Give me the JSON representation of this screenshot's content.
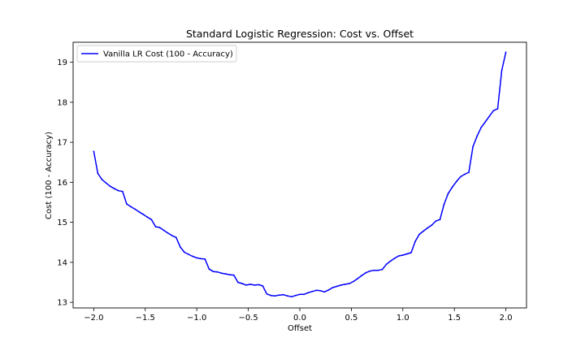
{
  "chart_data": {
    "type": "line",
    "title": "Standard Logistic Regression: Cost vs. Offset",
    "xlabel": "Offset",
    "ylabel": "Cost (100 - Accuracy)",
    "xlim": [
      -2.2,
      2.2
    ],
    "ylim": [
      12.86,
      19.5
    ],
    "xticks": [
      -2.0,
      -1.5,
      -1.0,
      -0.5,
      0.0,
      0.5,
      1.0,
      1.5,
      2.0
    ],
    "xtick_labels": [
      "−2.0",
      "−1.5",
      "−1.0",
      "−0.5",
      "0.0",
      "0.5",
      "1.0",
      "1.5",
      "2.0"
    ],
    "yticks": [
      13,
      14,
      15,
      16,
      17,
      18,
      19
    ],
    "ytick_labels": [
      "13",
      "14",
      "15",
      "16",
      "17",
      "18",
      "19"
    ],
    "grid": false,
    "legend": {
      "position": "top-left"
    },
    "series": [
      {
        "name": "Vanilla LR Cost (100 - Accuracy)",
        "color": "#0000ff",
        "x": [
          -2.0,
          -1.96,
          -1.92,
          -1.88,
          -1.84,
          -1.8,
          -1.76,
          -1.72,
          -1.68,
          -1.64,
          -1.6,
          -1.56,
          -1.52,
          -1.48,
          -1.44,
          -1.4,
          -1.36,
          -1.32,
          -1.28,
          -1.24,
          -1.2,
          -1.16,
          -1.12,
          -1.08,
          -1.04,
          -1.0,
          -0.96,
          -0.92,
          -0.88,
          -0.84,
          -0.8,
          -0.76,
          -0.72,
          -0.68,
          -0.64,
          -0.6,
          -0.56,
          -0.52,
          -0.48,
          -0.44,
          -0.4,
          -0.36,
          -0.32,
          -0.28,
          -0.24,
          -0.2,
          -0.16,
          -0.12,
          -0.08,
          -0.04,
          0.0,
          0.04,
          0.08,
          0.12,
          0.16,
          0.2,
          0.24,
          0.28,
          0.32,
          0.36,
          0.4,
          0.44,
          0.48,
          0.52,
          0.56,
          0.6,
          0.64,
          0.68,
          0.72,
          0.76,
          0.8,
          0.84,
          0.88,
          0.92,
          0.96,
          1.0,
          1.04,
          1.08,
          1.12,
          1.16,
          1.2,
          1.24,
          1.28,
          1.32,
          1.36,
          1.4,
          1.44,
          1.48,
          1.52,
          1.56,
          1.6,
          1.64,
          1.68,
          1.72,
          1.76,
          1.8,
          1.84,
          1.88,
          1.92,
          1.96,
          2.0
        ],
        "values": [
          16.77,
          16.22,
          16.07,
          15.98,
          15.9,
          15.84,
          15.79,
          15.77,
          15.46,
          15.39,
          15.33,
          15.26,
          15.2,
          15.13,
          15.07,
          14.89,
          14.87,
          14.8,
          14.73,
          14.67,
          14.62,
          14.38,
          14.25,
          14.2,
          14.15,
          14.11,
          14.09,
          14.08,
          13.83,
          13.77,
          13.76,
          13.73,
          13.71,
          13.69,
          13.68,
          13.5,
          13.47,
          13.43,
          13.45,
          13.43,
          13.44,
          13.41,
          13.21,
          13.17,
          13.16,
          13.18,
          13.19,
          13.16,
          13.14,
          13.17,
          13.2,
          13.2,
          13.24,
          13.27,
          13.3,
          13.29,
          13.26,
          13.31,
          13.37,
          13.4,
          13.43,
          13.45,
          13.47,
          13.52,
          13.59,
          13.67,
          13.74,
          13.78,
          13.8,
          13.8,
          13.82,
          13.95,
          14.03,
          14.1,
          14.16,
          14.18,
          14.21,
          14.24,
          14.52,
          14.7,
          14.78,
          14.86,
          14.93,
          15.03,
          15.07,
          15.45,
          15.72,
          15.88,
          16.02,
          16.14,
          16.2,
          16.25,
          16.89,
          17.15,
          17.37,
          17.51,
          17.65,
          17.79,
          17.84,
          18.8,
          19.25
        ]
      }
    ]
  }
}
